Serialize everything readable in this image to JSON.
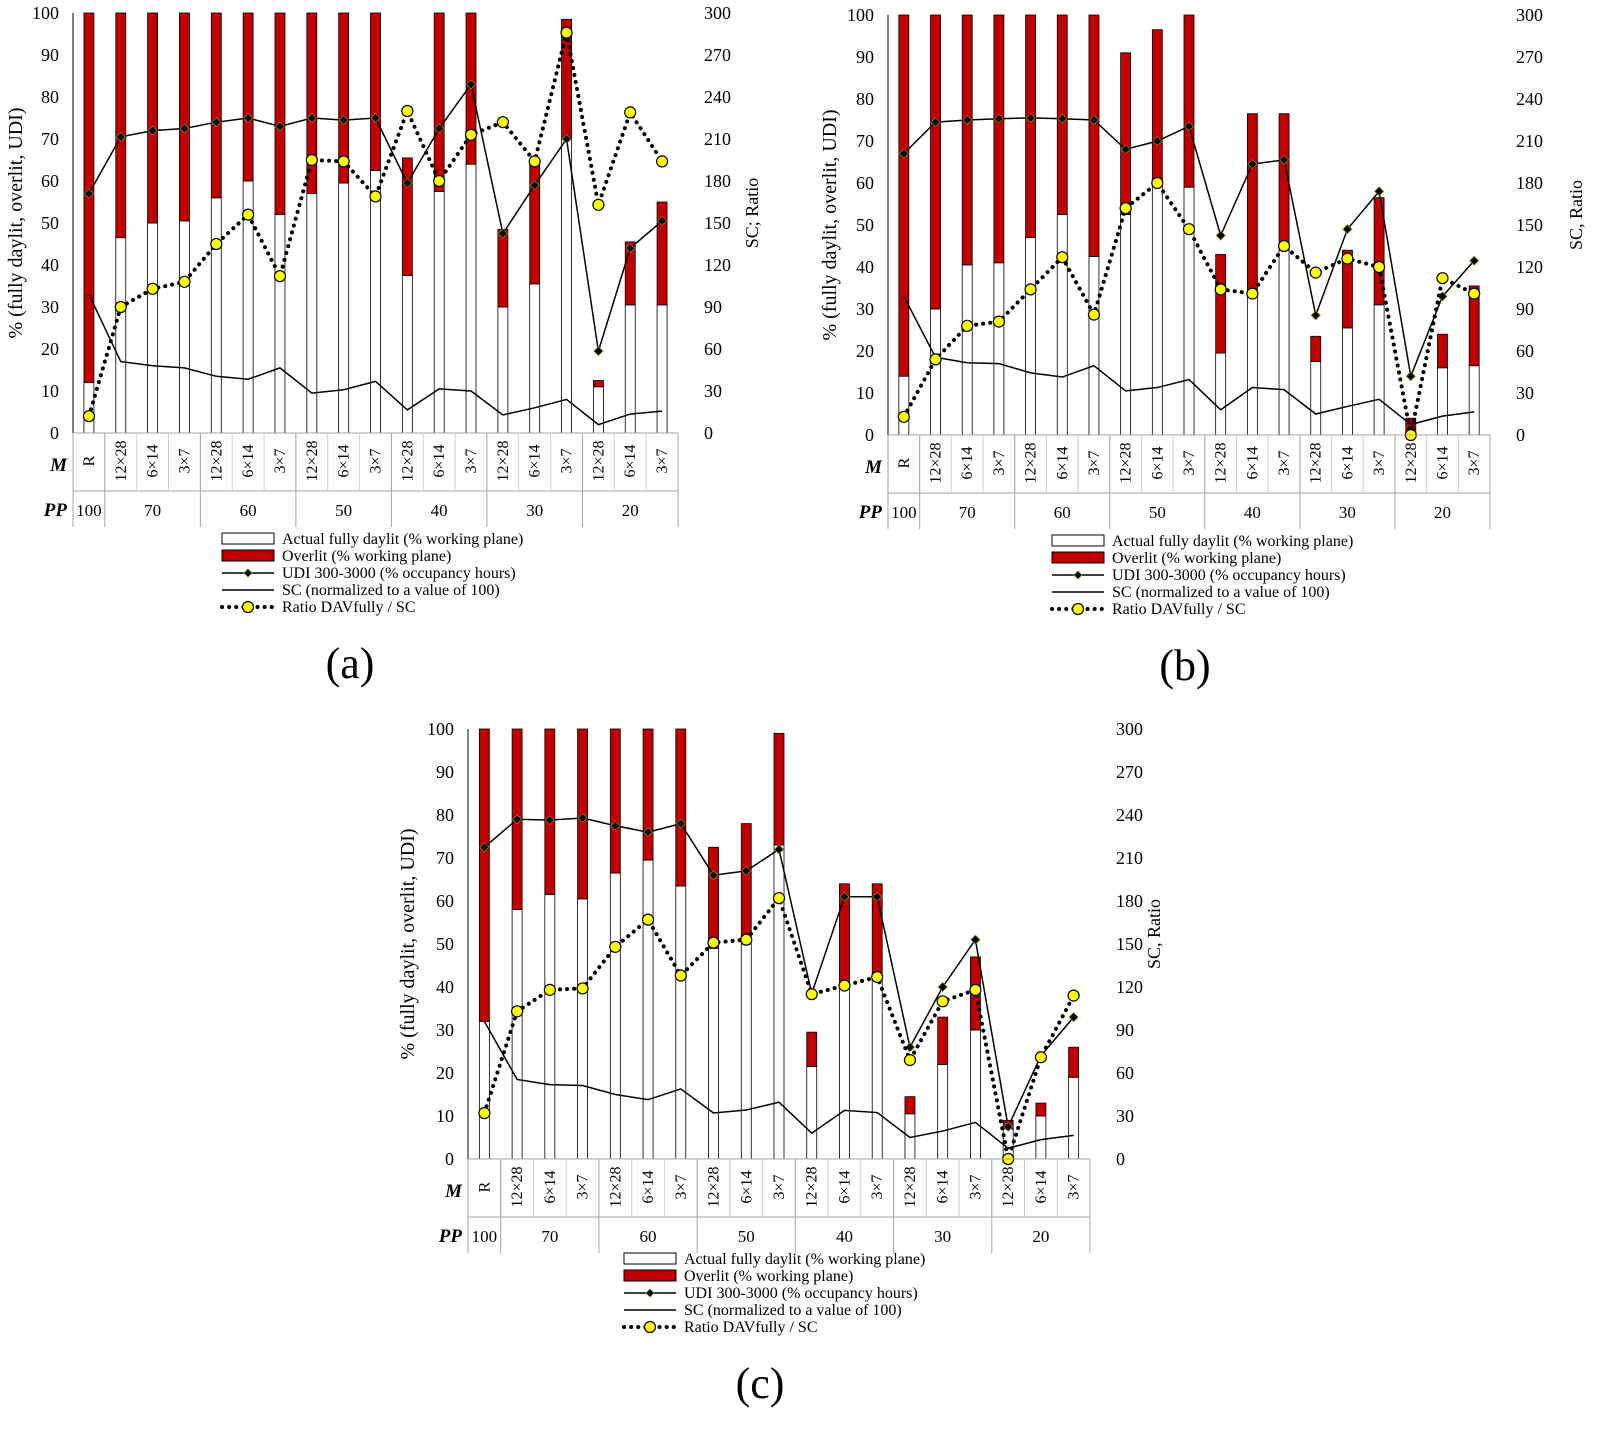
{
  "categories": [
    "R",
    "12×28",
    "6×14",
    "3×7",
    "12×28",
    "6×14",
    "3×7",
    "12×28",
    "6×14",
    "3×7",
    "12×28",
    "6×14",
    "3×7",
    "12×28",
    "6×14",
    "3×7",
    "12×28",
    "6×14",
    "3×7"
  ],
  "row_labels": {
    "m": "M",
    "pp": "PP"
  },
  "pp_groups": [
    {
      "label": "100",
      "span": 1
    },
    {
      "label": "70",
      "span": 3
    },
    {
      "label": "60",
      "span": 3
    },
    {
      "label": "50",
      "span": 3
    },
    {
      "label": "40",
      "span": 3
    },
    {
      "label": "30",
      "span": 3
    },
    {
      "label": "20",
      "span": 3
    }
  ],
  "legend": {
    "actual": "Actual fully daylit (% working plane)",
    "overlit": "Overlit (% working plane)",
    "udi": "UDI 300-3000 (% occupancy hours)",
    "sc": "SC (normalized to a value of 100)",
    "ratio": "Ratio DAVfully / SC"
  },
  "colors": {
    "overlit": "#c00000",
    "actual": "#ffffff",
    "marker_yellow": "#ffff00",
    "udi_marker": "#000000"
  },
  "left_ticks": [
    "0",
    "10",
    "20",
    "30",
    "40",
    "50",
    "60",
    "70",
    "80",
    "90",
    "100"
  ],
  "right_ticks": [
    "0",
    "30",
    "60",
    "90",
    "120",
    "150",
    "180",
    "210",
    "240",
    "270",
    "300"
  ],
  "chart_data": [
    {
      "type": "bar",
      "panel_label": "(a)",
      "ylabel": "% (fully daylit, overlit, UDI)",
      "y2label": "SC; Ratio",
      "ylim": [
        0,
        100
      ],
      "y2lim": [
        0,
        300
      ],
      "actual": [
        12,
        46.5,
        50,
        50.5,
        56,
        60,
        52,
        57,
        59.5,
        62.5,
        37.5,
        57.5,
        64,
        30,
        35.5,
        70,
        11,
        30.5,
        30.5
      ],
      "overlit": [
        88,
        53.5,
        50,
        49.5,
        44,
        40,
        48,
        43,
        40.5,
        37.5,
        28,
        42.5,
        36,
        18.5,
        29.5,
        28.5,
        1.5,
        15,
        24.5
      ],
      "udi": [
        57,
        70.5,
        72,
        72.5,
        74,
        75,
        73,
        75,
        74.5,
        75,
        59.5,
        72.5,
        83,
        47.5,
        59,
        70,
        19.5,
        44,
        50.5
      ],
      "sc": [
        33,
        17,
        16,
        15.5,
        13.5,
        12.8,
        15.5,
        9.5,
        10.3,
        12.3,
        5.5,
        10.5,
        10,
        4.3,
        6,
        8,
        2,
        4.5,
        5.2
      ],
      "ratio": [
        12,
        90,
        103,
        108,
        135,
        156,
        112,
        195,
        194,
        169,
        230,
        180,
        213,
        222,
        194,
        286,
        163,
        229,
        194
      ]
    },
    {
      "type": "bar",
      "panel_label": "(b)",
      "ylabel": "% (fully daylit, overlit, UDI)",
      "y2label": "SC, Ratio",
      "ylim": [
        0,
        100
      ],
      "y2lim": [
        0,
        300
      ],
      "actual": [
        14,
        30,
        40.5,
        41,
        47,
        52.5,
        42.5,
        52.5,
        61,
        59,
        19.5,
        33.5,
        44,
        17.5,
        25.5,
        31,
        0,
        16,
        16.5
      ],
      "overlit": [
        86,
        70,
        59.5,
        59,
        53,
        47.5,
        57.5,
        38.5,
        35.5,
        41,
        23.5,
        43,
        32.5,
        6,
        18.5,
        25.5,
        4,
        8,
        19
      ],
      "udi": [
        67,
        74.5,
        75,
        75.3,
        75.5,
        75.3,
        75,
        68,
        70,
        73.5,
        47.5,
        64.5,
        65.5,
        28.5,
        49,
        58,
        14,
        33,
        41.5
      ],
      "sc": [
        33,
        18.5,
        17.2,
        17,
        14.8,
        13.8,
        16.5,
        10.5,
        11.3,
        13.2,
        6,
        11.3,
        10.8,
        5,
        6.8,
        8.5,
        2.5,
        4.5,
        5.5
      ],
      "ratio": [
        13,
        54,
        78,
        81,
        104,
        127,
        86,
        162,
        180,
        147,
        104,
        101,
        135,
        116,
        126,
        120,
        0,
        112,
        101
      ]
    },
    {
      "type": "bar",
      "panel_label": "(c)",
      "ylabel": "% (fully daylit, overlit, UDI)",
      "y2label": "SC, Ratio",
      "ylim": [
        0,
        100
      ],
      "y2lim": [
        0,
        300
      ],
      "actual": [
        32,
        58,
        61.5,
        60.5,
        66.5,
        69.5,
        63.5,
        49,
        50,
        73,
        21.5,
        40.5,
        43,
        10.5,
        22,
        30,
        7,
        10,
        19
      ],
      "overlit": [
        68,
        42,
        38.5,
        39.5,
        33.5,
        30.5,
        36.5,
        23.5,
        28,
        26,
        8,
        23.5,
        21,
        4,
        11,
        17,
        2,
        3,
        7
      ],
      "udi": [
        72.5,
        79,
        78.8,
        79.3,
        77.5,
        76,
        78,
        66,
        67,
        72,
        38.5,
        61,
        61,
        26,
        40,
        51,
        7.5,
        24,
        33
      ],
      "sc": [
        32,
        18.5,
        17.3,
        17.1,
        15,
        13.8,
        16.3,
        10.7,
        11.4,
        13.2,
        6,
        11.3,
        10.8,
        5,
        6.5,
        8.5,
        2.5,
        4.5,
        5.5
      ],
      "ratio": [
        32,
        103,
        118,
        119,
        148,
        167,
        128,
        151,
        153,
        182,
        115,
        121,
        127,
        69,
        110,
        118,
        0,
        71,
        114
      ]
    }
  ]
}
